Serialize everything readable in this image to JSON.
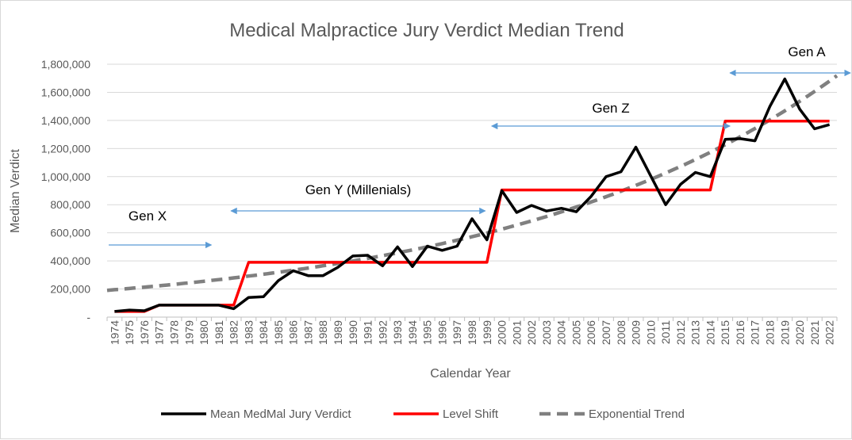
{
  "chart_data": {
    "type": "line",
    "title": "Medical Malpractice Jury Verdict Median Trend",
    "xlabel": "Calendar Year",
    "ylabel": "Median Verdict",
    "ylim": [
      0,
      1800000
    ],
    "yticks": [
      0,
      200000,
      400000,
      600000,
      800000,
      1000000,
      1200000,
      1400000,
      1600000,
      1800000
    ],
    "ytick_labels": [
      "-",
      "200,000",
      "400,000",
      "600,000",
      "800,000",
      "1,000,000",
      "1,200,000",
      "1,400,000",
      "1,600,000",
      "1,800,000"
    ],
    "grid": true,
    "legend_position": "bottom",
    "x": [
      1974,
      1975,
      1976,
      1977,
      1978,
      1979,
      1980,
      1981,
      1982,
      1983,
      1984,
      1985,
      1986,
      1987,
      1988,
      1989,
      1990,
      1991,
      1992,
      1993,
      1994,
      1995,
      1996,
      1997,
      1998,
      1999,
      2000,
      2001,
      2002,
      2003,
      2004,
      2005,
      2006,
      2007,
      2008,
      2009,
      2010,
      2011,
      2012,
      2013,
      2014,
      2015,
      2016,
      2017,
      2018,
      2019,
      2020,
      2021,
      2022
    ],
    "series": [
      {
        "name": "Mean MedMal Jury Verdict",
        "color": "#000000",
        "style": "solid",
        "values": [
          40000,
          50000,
          45000,
          85000,
          85000,
          85000,
          85000,
          85000,
          60000,
          140000,
          145000,
          260000,
          330000,
          295000,
          295000,
          355000,
          435000,
          440000,
          365000,
          500000,
          360000,
          505000,
          475000,
          505000,
          700000,
          550000,
          900000,
          745000,
          795000,
          755000,
          775000,
          750000,
          860000,
          1000000,
          1035000,
          1210000,
          1005000,
          800000,
          945000,
          1030000,
          1000000,
          1265000,
          1270000,
          1255000,
          1500000,
          1695000,
          1480000,
          1340000,
          1370000
        ]
      },
      {
        "name": "Level Shift",
        "color": "#ff0000",
        "style": "solid",
        "values": [
          40000,
          40000,
          40000,
          85000,
          85000,
          85000,
          85000,
          85000,
          85000,
          390000,
          390000,
          390000,
          390000,
          390000,
          390000,
          390000,
          390000,
          390000,
          390000,
          390000,
          390000,
          390000,
          390000,
          390000,
          390000,
          390000,
          905000,
          905000,
          905000,
          905000,
          905000,
          905000,
          905000,
          905000,
          905000,
          905000,
          905000,
          905000,
          905000,
          905000,
          905000,
          1395000,
          1395000,
          1395000,
          1395000,
          1395000,
          1395000,
          1395000,
          1395000
        ]
      },
      {
        "name": "Exponential Trend",
        "color": "#808080",
        "style": "dashed",
        "start_value": 195000,
        "end_value": 1680000
      }
    ],
    "annotations": [
      {
        "label": "Gen X",
        "from": 1974,
        "to": 1981
      },
      {
        "label": "Gen Y (Millenials)",
        "from": 1982,
        "to": 1999
      },
      {
        "label": "Gen Z",
        "from": 1999,
        "to": 2015
      },
      {
        "label": "Gen A",
        "from": 2015,
        "to": 2023
      }
    ],
    "arrow_color": "#5b9bd5"
  }
}
